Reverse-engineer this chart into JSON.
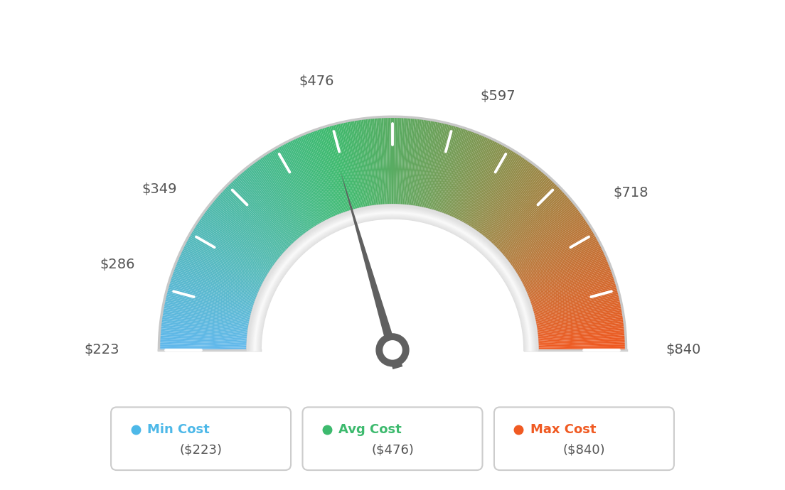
{
  "min_val": 223,
  "max_val": 840,
  "avg_val": 476,
  "tick_values": [
    223,
    286,
    349,
    476,
    597,
    718,
    840
  ],
  "tick_labels": [
    "$223",
    "$286",
    "$349",
    "$476",
    "$597",
    "$718",
    "$840"
  ],
  "legend": [
    {
      "label": "Min Cost",
      "value": "($223)",
      "color": "#4db8e8"
    },
    {
      "label": "Avg Cost",
      "value": "($476)",
      "color": "#3dba6e"
    },
    {
      "label": "Max Cost",
      "value": "($840)",
      "color": "#f05a22"
    }
  ],
  "color_stops": [
    [
      223,
      [
        0.38,
        0.72,
        0.93
      ]
    ],
    [
      476,
      [
        0.24,
        0.73,
        0.43
      ]
    ],
    [
      840,
      [
        0.94,
        0.35,
        0.13
      ]
    ]
  ],
  "background_color": "#ffffff",
  "needle_color": "#606060",
  "outer_arc_color": "#cccccc",
  "inner_ring_color": "#d8d8d8"
}
